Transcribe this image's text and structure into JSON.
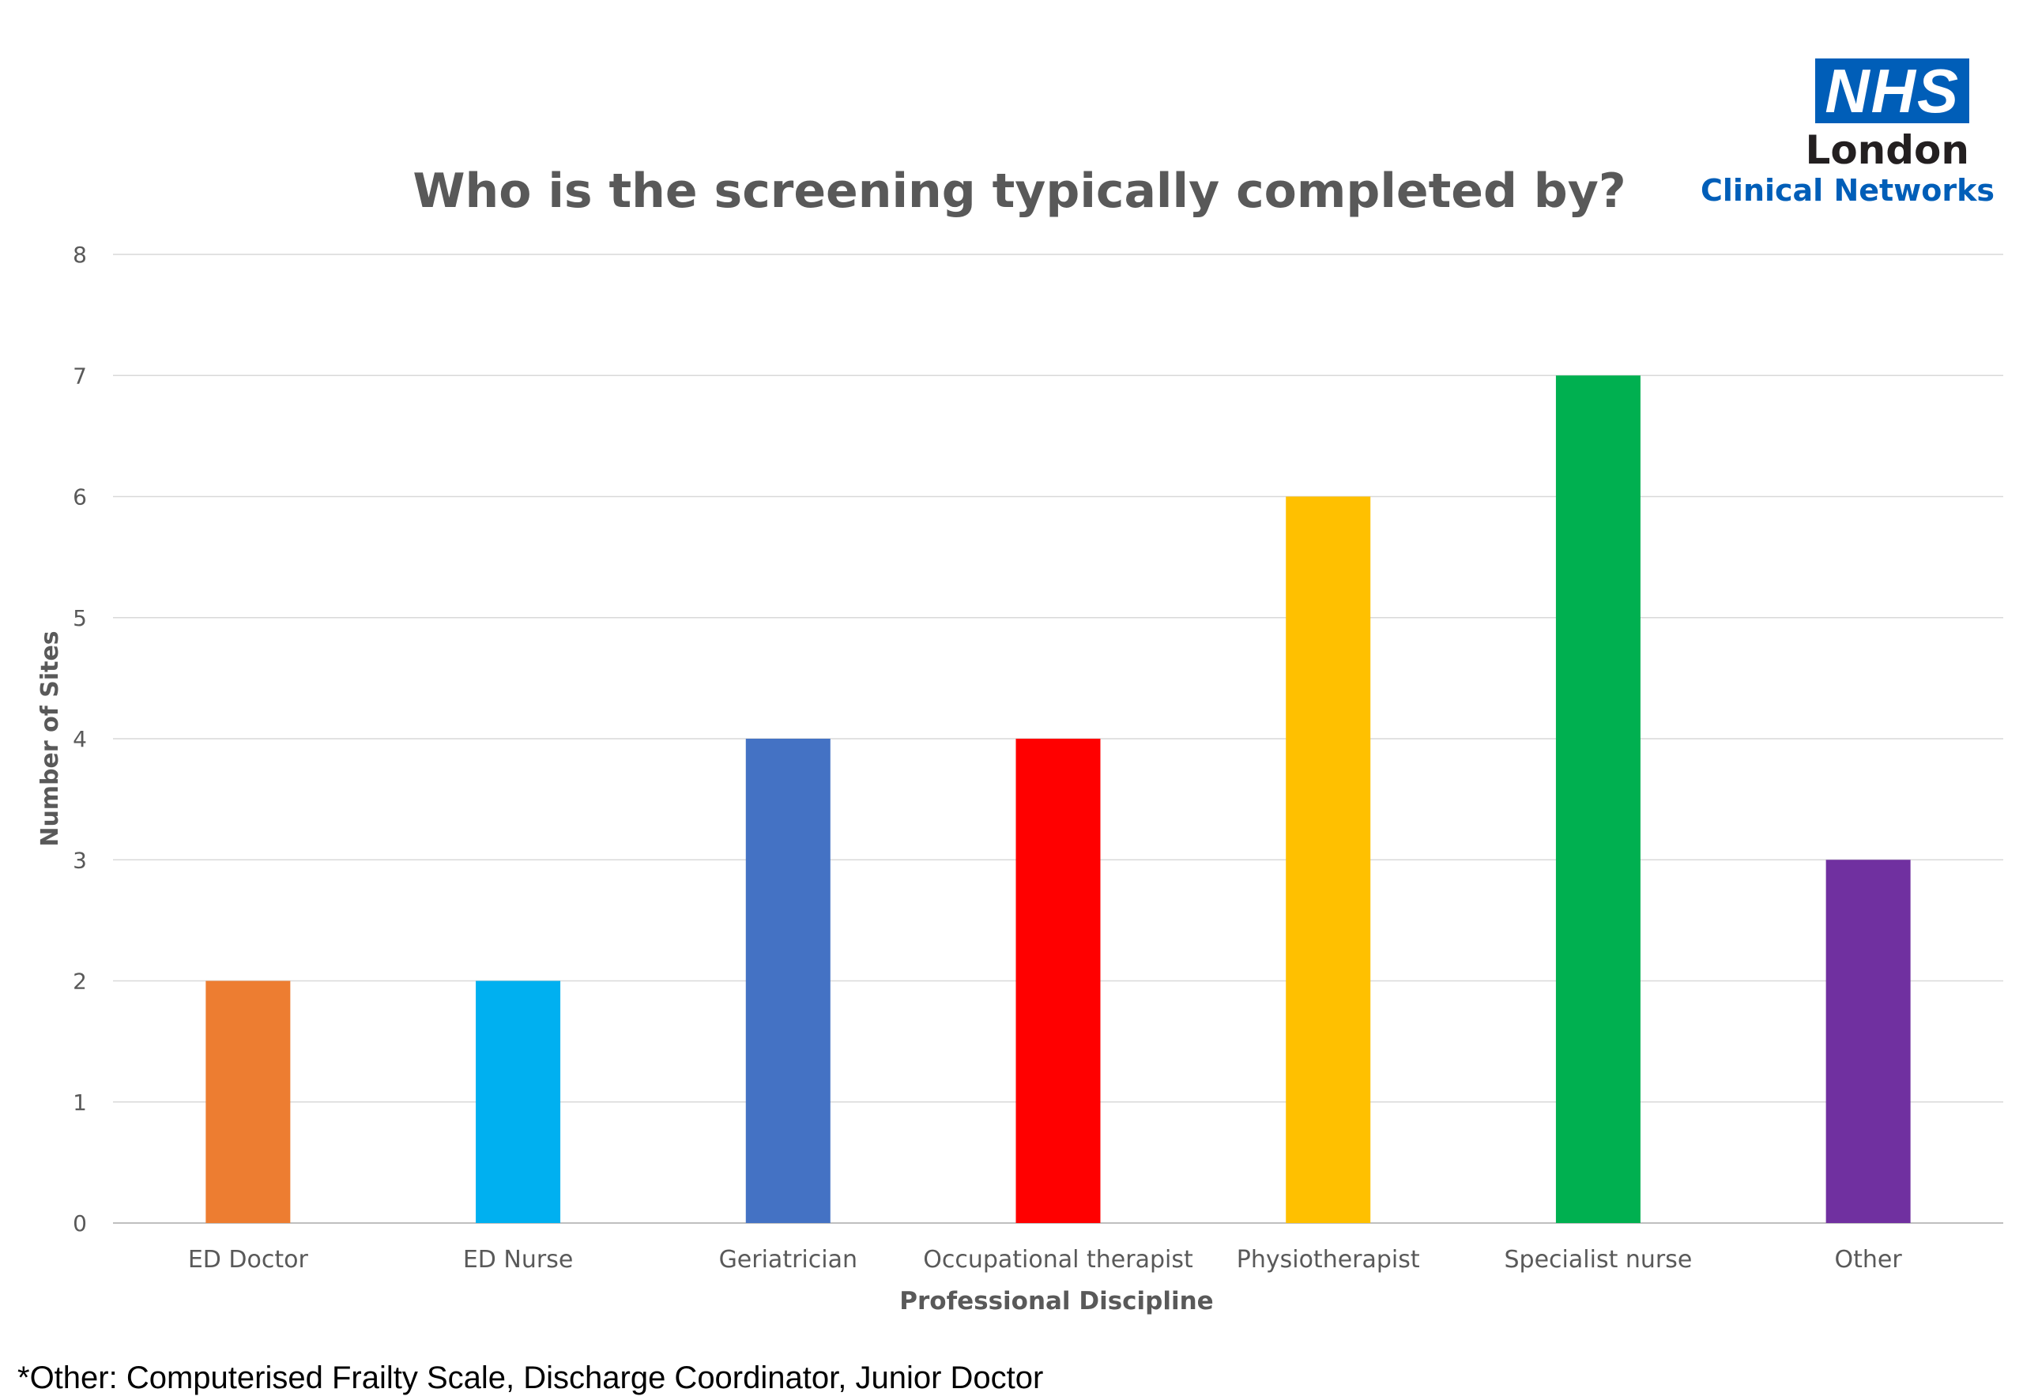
{
  "logo": {
    "mark": "NHS",
    "line1": "London",
    "line2": "Clinical Networks",
    "mark_color": "#005EB8"
  },
  "chart_data": {
    "type": "bar",
    "title": "Who is the screening typically completed by?",
    "xlabel": "Professional Discipline",
    "ylabel": "Number of Sites",
    "ylim": [
      0,
      8
    ],
    "yticks": [
      0,
      1,
      2,
      3,
      4,
      5,
      6,
      7,
      8
    ],
    "grid": true,
    "categories": [
      "ED Doctor",
      "ED Nurse",
      "Geriatrician",
      "Occupational therapist",
      "Physiotherapist",
      "Specialist nurse",
      "Other"
    ],
    "values": [
      2,
      2,
      4,
      4,
      6,
      7,
      3
    ],
    "colors": [
      "#ED7D31",
      "#00B0F0",
      "#4472C4",
      "#FF0000",
      "#FFC000",
      "#00B050",
      "#7030A0"
    ]
  },
  "footnote": "*Other: Computerised Frailty Scale, Discharge Coordinator, Junior Doctor"
}
